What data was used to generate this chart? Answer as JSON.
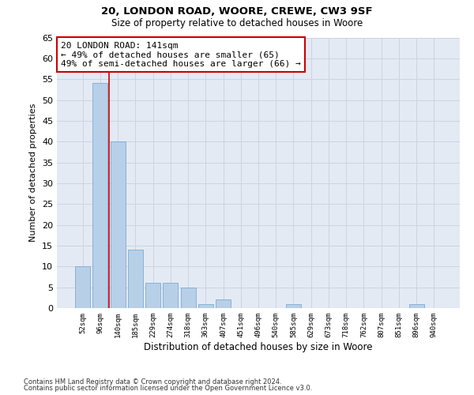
{
  "title1": "20, LONDON ROAD, WOORE, CREWE, CW3 9SF",
  "title2": "Size of property relative to detached houses in Woore",
  "xlabel": "Distribution of detached houses by size in Woore",
  "ylabel": "Number of detached properties",
  "categories": [
    "52sqm",
    "96sqm",
    "140sqm",
    "185sqm",
    "229sqm",
    "274sqm",
    "318sqm",
    "363sqm",
    "407sqm",
    "451sqm",
    "496sqm",
    "540sqm",
    "585sqm",
    "629sqm",
    "673sqm",
    "718sqm",
    "762sqm",
    "807sqm",
    "851sqm",
    "896sqm",
    "940sqm"
  ],
  "values": [
    10,
    54,
    40,
    14,
    6,
    6,
    5,
    1,
    2,
    0,
    0,
    0,
    1,
    0,
    0,
    0,
    0,
    0,
    0,
    1,
    0
  ],
  "bar_color": "#b8cfe8",
  "bar_edge_color": "#7aadd4",
  "red_line_x": 1.5,
  "annotation_text": "20 LONDON ROAD: 141sqm\n← 49% of detached houses are smaller (65)\n49% of semi-detached houses are larger (66) →",
  "annotation_box_color": "#ffffff",
  "annotation_box_edge": "#cc0000",
  "ylim": [
    0,
    65
  ],
  "yticks": [
    0,
    5,
    10,
    15,
    20,
    25,
    30,
    35,
    40,
    45,
    50,
    55,
    60,
    65
  ],
  "footer1": "Contains HM Land Registry data © Crown copyright and database right 2024.",
  "footer2": "Contains public sector information licensed under the Open Government Licence v3.0.",
  "grid_color": "#ccd4e0",
  "background_color": "#e4eaf4"
}
